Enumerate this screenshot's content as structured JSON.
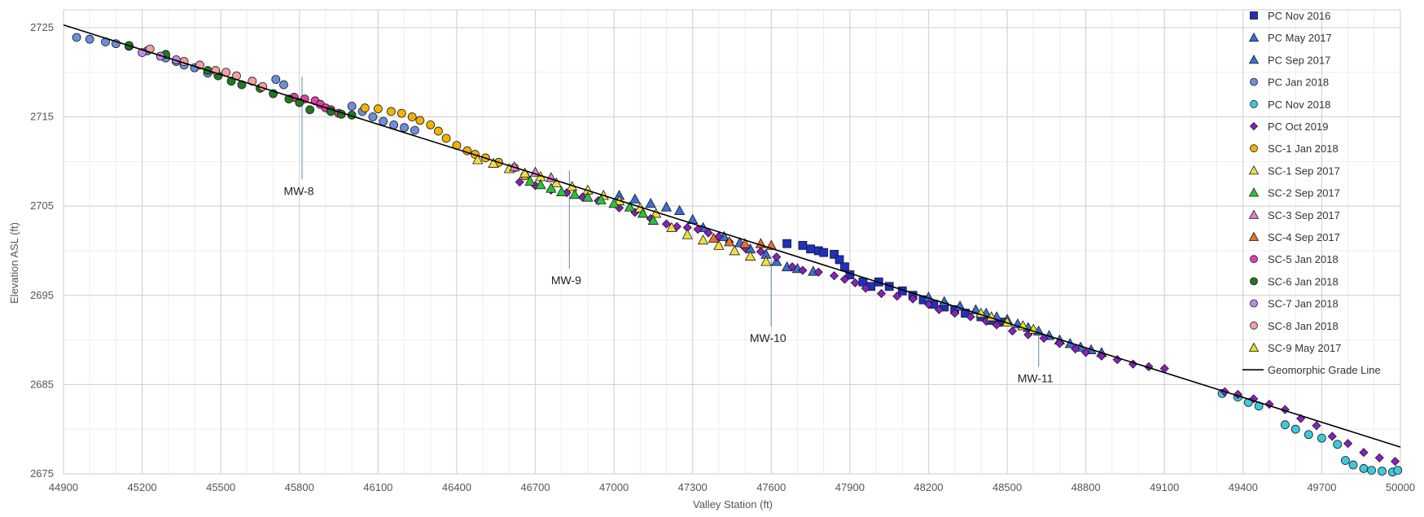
{
  "chart_data": {
    "type": "scatter",
    "xlabel": "Valley Station (ft)",
    "ylabel": "Elevation ASL (ft)",
    "xlim": [
      44900,
      50000
    ],
    "ylim": [
      2675,
      2727
    ],
    "x_ticks": [
      44900,
      45200,
      45500,
      45800,
      46100,
      46400,
      46700,
      47000,
      47300,
      47600,
      47900,
      48200,
      48500,
      48800,
      49100,
      49400,
      49700,
      50000
    ],
    "y_ticks": [
      2675,
      2685,
      2695,
      2705,
      2715,
      2725
    ],
    "grid": true,
    "legend_position": "right",
    "grade_line": {
      "name": "Geomorphic Grade Line",
      "color": "#000000",
      "points": [
        [
          44900,
          2725.3
        ],
        [
          50000,
          2678.0
        ]
      ]
    },
    "reference_lines": [
      {
        "label": "MW-8",
        "x": 45810,
        "y_top": 2719.5,
        "y_bottom": 2708
      },
      {
        "label": "MW-9",
        "x": 46830,
        "y_top": 2709,
        "y_bottom": 2698
      },
      {
        "label": "MW-10",
        "x": 47600,
        "y_top": 2699,
        "y_bottom": 2691.5
      },
      {
        "label": "MW-11",
        "x": 48620,
        "y_top": 2691.5,
        "y_bottom": 2687
      }
    ],
    "series": [
      {
        "name": "PC Nov 2016",
        "marker": "square",
        "color": "#1f2fbf",
        "points": [
          [
            47660,
            2700.8
          ],
          [
            47720,
            2700.6
          ],
          [
            47750,
            2700.2
          ],
          [
            47780,
            2700.0
          ],
          [
            47800,
            2699.8
          ],
          [
            47840,
            2699.6
          ],
          [
            47860,
            2699.0
          ],
          [
            47880,
            2698.2
          ],
          [
            47900,
            2697.3
          ],
          [
            47950,
            2696.5
          ],
          [
            47980,
            2696.0
          ],
          [
            48010,
            2696.5
          ],
          [
            48050,
            2696.0
          ],
          [
            48100,
            2695.5
          ],
          [
            48140,
            2695.0
          ],
          [
            48180,
            2694.5
          ],
          [
            48220,
            2694.0
          ],
          [
            48260,
            2693.7
          ],
          [
            48300,
            2693.4
          ],
          [
            48340,
            2693.0
          ],
          [
            48400,
            2692.6
          ],
          [
            48440,
            2692.2
          ],
          [
            48480,
            2692.0
          ]
        ]
      },
      {
        "name": "PC May 2017",
        "marker": "triangle",
        "color": "#3a6fd6",
        "points": [
          [
            47020,
            2706.2
          ],
          [
            47080,
            2705.8
          ],
          [
            47140,
            2705.3
          ],
          [
            47200,
            2704.9
          ],
          [
            47250,
            2704.5
          ],
          [
            47300,
            2703.5
          ],
          [
            47340,
            2702.6
          ],
          [
            47420,
            2701.6
          ],
          [
            47480,
            2700.9
          ],
          [
            47520,
            2700.2
          ],
          [
            47580,
            2699.6
          ],
          [
            47620,
            2698.8
          ],
          [
            47660,
            2698.2
          ],
          [
            47700,
            2698.0
          ],
          [
            47760,
            2697.7
          ]
        ]
      },
      {
        "name": "PC Sep 2017",
        "marker": "triangle",
        "color": "#3a6fd6",
        "points": [
          [
            48200,
            2694.8
          ],
          [
            48260,
            2694.3
          ],
          [
            48320,
            2693.8
          ],
          [
            48380,
            2693.4
          ],
          [
            48420,
            2693.0
          ],
          [
            48460,
            2692.6
          ],
          [
            48500,
            2692.3
          ],
          [
            48540,
            2691.8
          ],
          [
            48580,
            2691.4
          ],
          [
            48620,
            2691.0
          ],
          [
            48660,
            2690.5
          ],
          [
            48700,
            2690.0
          ],
          [
            48740,
            2689.6
          ],
          [
            48780,
            2689.2
          ],
          [
            48820,
            2688.9
          ],
          [
            48860,
            2688.6
          ]
        ]
      },
      {
        "name": "PC Jan 2018",
        "marker": "circle",
        "color": "#6d8fdb",
        "points": [
          [
            44950,
            2723.9
          ],
          [
            45000,
            2723.7
          ],
          [
            45060,
            2723.4
          ],
          [
            45100,
            2723.2
          ],
          [
            45150,
            2722.9
          ],
          [
            45220,
            2722.4
          ],
          [
            45290,
            2721.6
          ],
          [
            45330,
            2721.2
          ],
          [
            45360,
            2720.8
          ],
          [
            45400,
            2720.5
          ],
          [
            45450,
            2719.9
          ],
          [
            45710,
            2719.2
          ],
          [
            45740,
            2718.6
          ],
          [
            46000,
            2716.2
          ],
          [
            46040,
            2715.6
          ],
          [
            46080,
            2715.0
          ],
          [
            46120,
            2714.5
          ],
          [
            46160,
            2714.1
          ],
          [
            46200,
            2713.8
          ],
          [
            46240,
            2713.5
          ]
        ]
      },
      {
        "name": "PC Nov 2018",
        "marker": "circle",
        "color": "#3ec8dc",
        "points": [
          [
            49320,
            2684.0
          ],
          [
            49380,
            2683.6
          ],
          [
            49420,
            2683.0
          ],
          [
            49460,
            2682.6
          ],
          [
            49560,
            2680.5
          ],
          [
            49600,
            2680.0
          ],
          [
            49650,
            2679.4
          ],
          [
            49700,
            2679.0
          ],
          [
            49760,
            2678.3
          ],
          [
            49790,
            2676.5
          ],
          [
            49820,
            2676.0
          ],
          [
            49860,
            2675.6
          ],
          [
            49890,
            2675.4
          ],
          [
            49930,
            2675.3
          ],
          [
            49970,
            2675.2
          ],
          [
            49990,
            2675.4
          ]
        ]
      },
      {
        "name": "PC Oct 2019",
        "marker": "diamond",
        "color": "#8a1fbf",
        "points": [
          [
            46640,
            2707.7
          ],
          [
            46700,
            2707.3
          ],
          [
            46760,
            2706.8
          ],
          [
            46820,
            2706.5
          ],
          [
            46880,
            2706.0
          ],
          [
            46940,
            2705.6
          ],
          [
            47020,
            2704.8
          ],
          [
            47080,
            2704.3
          ],
          [
            47140,
            2703.6
          ],
          [
            47200,
            2703.0
          ],
          [
            47240,
            2702.7
          ],
          [
            47280,
            2702.6
          ],
          [
            47320,
            2702.4
          ],
          [
            47360,
            2702.0
          ],
          [
            47400,
            2701.6
          ],
          [
            47440,
            2701.0
          ],
          [
            47500,
            2700.3
          ],
          [
            47560,
            2699.9
          ],
          [
            47620,
            2699.3
          ],
          [
            47680,
            2698.2
          ],
          [
            47720,
            2697.8
          ],
          [
            47780,
            2697.6
          ],
          [
            47840,
            2697.2
          ],
          [
            47880,
            2696.8
          ],
          [
            47920,
            2696.4
          ],
          [
            47960,
            2695.8
          ],
          [
            48020,
            2695.2
          ],
          [
            48080,
            2694.9
          ],
          [
            48140,
            2694.6
          ],
          [
            48200,
            2694.0
          ],
          [
            48240,
            2693.4
          ],
          [
            48300,
            2693.0
          ],
          [
            48360,
            2692.6
          ],
          [
            48420,
            2692.1
          ],
          [
            48460,
            2691.7
          ],
          [
            48520,
            2691.0
          ],
          [
            48580,
            2690.6
          ],
          [
            48640,
            2690.2
          ],
          [
            48700,
            2689.6
          ],
          [
            48760,
            2689.0
          ],
          [
            48800,
            2688.6
          ],
          [
            48860,
            2688.2
          ],
          [
            48920,
            2687.8
          ],
          [
            48980,
            2687.3
          ],
          [
            49040,
            2687.0
          ],
          [
            49100,
            2686.8
          ],
          [
            49330,
            2684.2
          ],
          [
            49380,
            2683.9
          ],
          [
            49440,
            2683.4
          ],
          [
            49500,
            2682.8
          ],
          [
            49560,
            2682.2
          ],
          [
            49620,
            2681.2
          ],
          [
            49680,
            2680.4
          ],
          [
            49740,
            2679.2
          ],
          [
            49800,
            2678.4
          ],
          [
            49860,
            2677.4
          ],
          [
            49920,
            2676.8
          ],
          [
            49980,
            2676.4
          ]
        ]
      },
      {
        "name": "SC-1 Jan 2018",
        "marker": "circle",
        "color": "#f2b300",
        "points": [
          [
            46050,
            2716.0
          ],
          [
            46100,
            2715.9
          ],
          [
            46150,
            2715.6
          ],
          [
            46190,
            2715.4
          ],
          [
            46230,
            2715.0
          ],
          [
            46260,
            2714.6
          ],
          [
            46300,
            2714.1
          ],
          [
            46330,
            2713.4
          ],
          [
            46360,
            2712.6
          ],
          [
            46400,
            2711.8
          ],
          [
            46440,
            2711.2
          ],
          [
            46470,
            2710.8
          ],
          [
            46510,
            2710.4
          ],
          [
            46560,
            2709.9
          ],
          [
            46620,
            2709.3
          ],
          [
            46660,
            2708.4
          ]
        ]
      },
      {
        "name": "SC-1 Sep 2017",
        "marker": "triangle",
        "color": "#f0e040",
        "points": [
          [
            46480,
            2710.2
          ],
          [
            46540,
            2709.8
          ],
          [
            46600,
            2709.2
          ],
          [
            46660,
            2708.7
          ],
          [
            46720,
            2708.3
          ],
          [
            46780,
            2707.6
          ],
          [
            46840,
            2707.2
          ],
          [
            46900,
            2706.8
          ],
          [
            46960,
            2706.2
          ],
          [
            47020,
            2705.6
          ],
          [
            47100,
            2704.8
          ],
          [
            47160,
            2704.2
          ],
          [
            47220,
            2702.6
          ],
          [
            47280,
            2701.8
          ],
          [
            47340,
            2701.2
          ],
          [
            47400,
            2700.6
          ],
          [
            47460,
            2700.0
          ],
          [
            47520,
            2699.4
          ],
          [
            47580,
            2698.8
          ]
        ]
      },
      {
        "name": "SC-2 Sep 2017",
        "marker": "triangle",
        "color": "#2fbf3a",
        "points": [
          [
            46680,
            2707.8
          ],
          [
            46720,
            2707.4
          ],
          [
            46760,
            2707.0
          ],
          [
            46800,
            2706.6
          ],
          [
            46850,
            2706.3
          ],
          [
            46900,
            2706.0
          ],
          [
            46950,
            2705.7
          ],
          [
            47000,
            2705.3
          ],
          [
            47060,
            2704.9
          ],
          [
            47110,
            2704.2
          ],
          [
            47150,
            2703.4
          ]
        ]
      },
      {
        "name": "SC-3 Sep 2017",
        "marker": "triangle",
        "color": "#e87fd0",
        "points": [
          [
            46620,
            2709.4
          ],
          [
            46700,
            2708.8
          ],
          [
            46760,
            2708.2
          ]
        ]
      },
      {
        "name": "SC-4 Sep 2017",
        "marker": "triangle",
        "color": "#e8712a",
        "points": [
          [
            47380,
            2701.4
          ],
          [
            47440,
            2701.0
          ],
          [
            47500,
            2700.8
          ],
          [
            47560,
            2700.8
          ],
          [
            47600,
            2700.6
          ]
        ]
      },
      {
        "name": "SC-5 Jan 2018",
        "marker": "circle",
        "color": "#e040a8",
        "points": [
          [
            45780,
            2717.2
          ],
          [
            45820,
            2717.0
          ],
          [
            45860,
            2716.8
          ],
          [
            45880,
            2716.4
          ],
          [
            45900,
            2716.0
          ],
          [
            45920,
            2715.8
          ],
          [
            45950,
            2715.4
          ]
        ]
      },
      {
        "name": "SC-6 Jan 2018",
        "marker": "circle",
        "color": "#1f7a1f",
        "points": [
          [
            45150,
            2723.0
          ],
          [
            45290,
            2722.0
          ],
          [
            45450,
            2720.2
          ],
          [
            45490,
            2719.6
          ],
          [
            45540,
            2719.0
          ],
          [
            45580,
            2718.6
          ],
          [
            45650,
            2718.2
          ],
          [
            45700,
            2717.6
          ],
          [
            45760,
            2717.0
          ],
          [
            45800,
            2716.6
          ],
          [
            45840,
            2715.8
          ],
          [
            45920,
            2715.6
          ],
          [
            45960,
            2715.3
          ],
          [
            46000,
            2715.2
          ]
        ]
      },
      {
        "name": "SC-7 Jan 2018",
        "marker": "circle",
        "color": "#c08ae8",
        "points": [
          [
            45200,
            2722.2
          ],
          [
            45270,
            2721.8
          ],
          [
            45330,
            2721.4
          ]
        ]
      },
      {
        "name": "SC-8 Jan 2018",
        "marker": "circle",
        "color": "#f4a0a0",
        "points": [
          [
            45230,
            2722.6
          ],
          [
            45360,
            2721.2
          ],
          [
            45420,
            2720.8
          ],
          [
            45480,
            2720.2
          ],
          [
            45520,
            2720.0
          ],
          [
            45560,
            2719.6
          ],
          [
            45620,
            2719.0
          ],
          [
            45660,
            2718.4
          ]
        ]
      },
      {
        "name": "SC-9 May 2017",
        "marker": "triangle",
        "color": "#e8e020",
        "points": [
          [
            48400,
            2693.0
          ],
          [
            48440,
            2692.6
          ],
          [
            48500,
            2692.0
          ],
          [
            48560,
            2691.6
          ],
          [
            48600,
            2691.2
          ]
        ]
      }
    ]
  }
}
